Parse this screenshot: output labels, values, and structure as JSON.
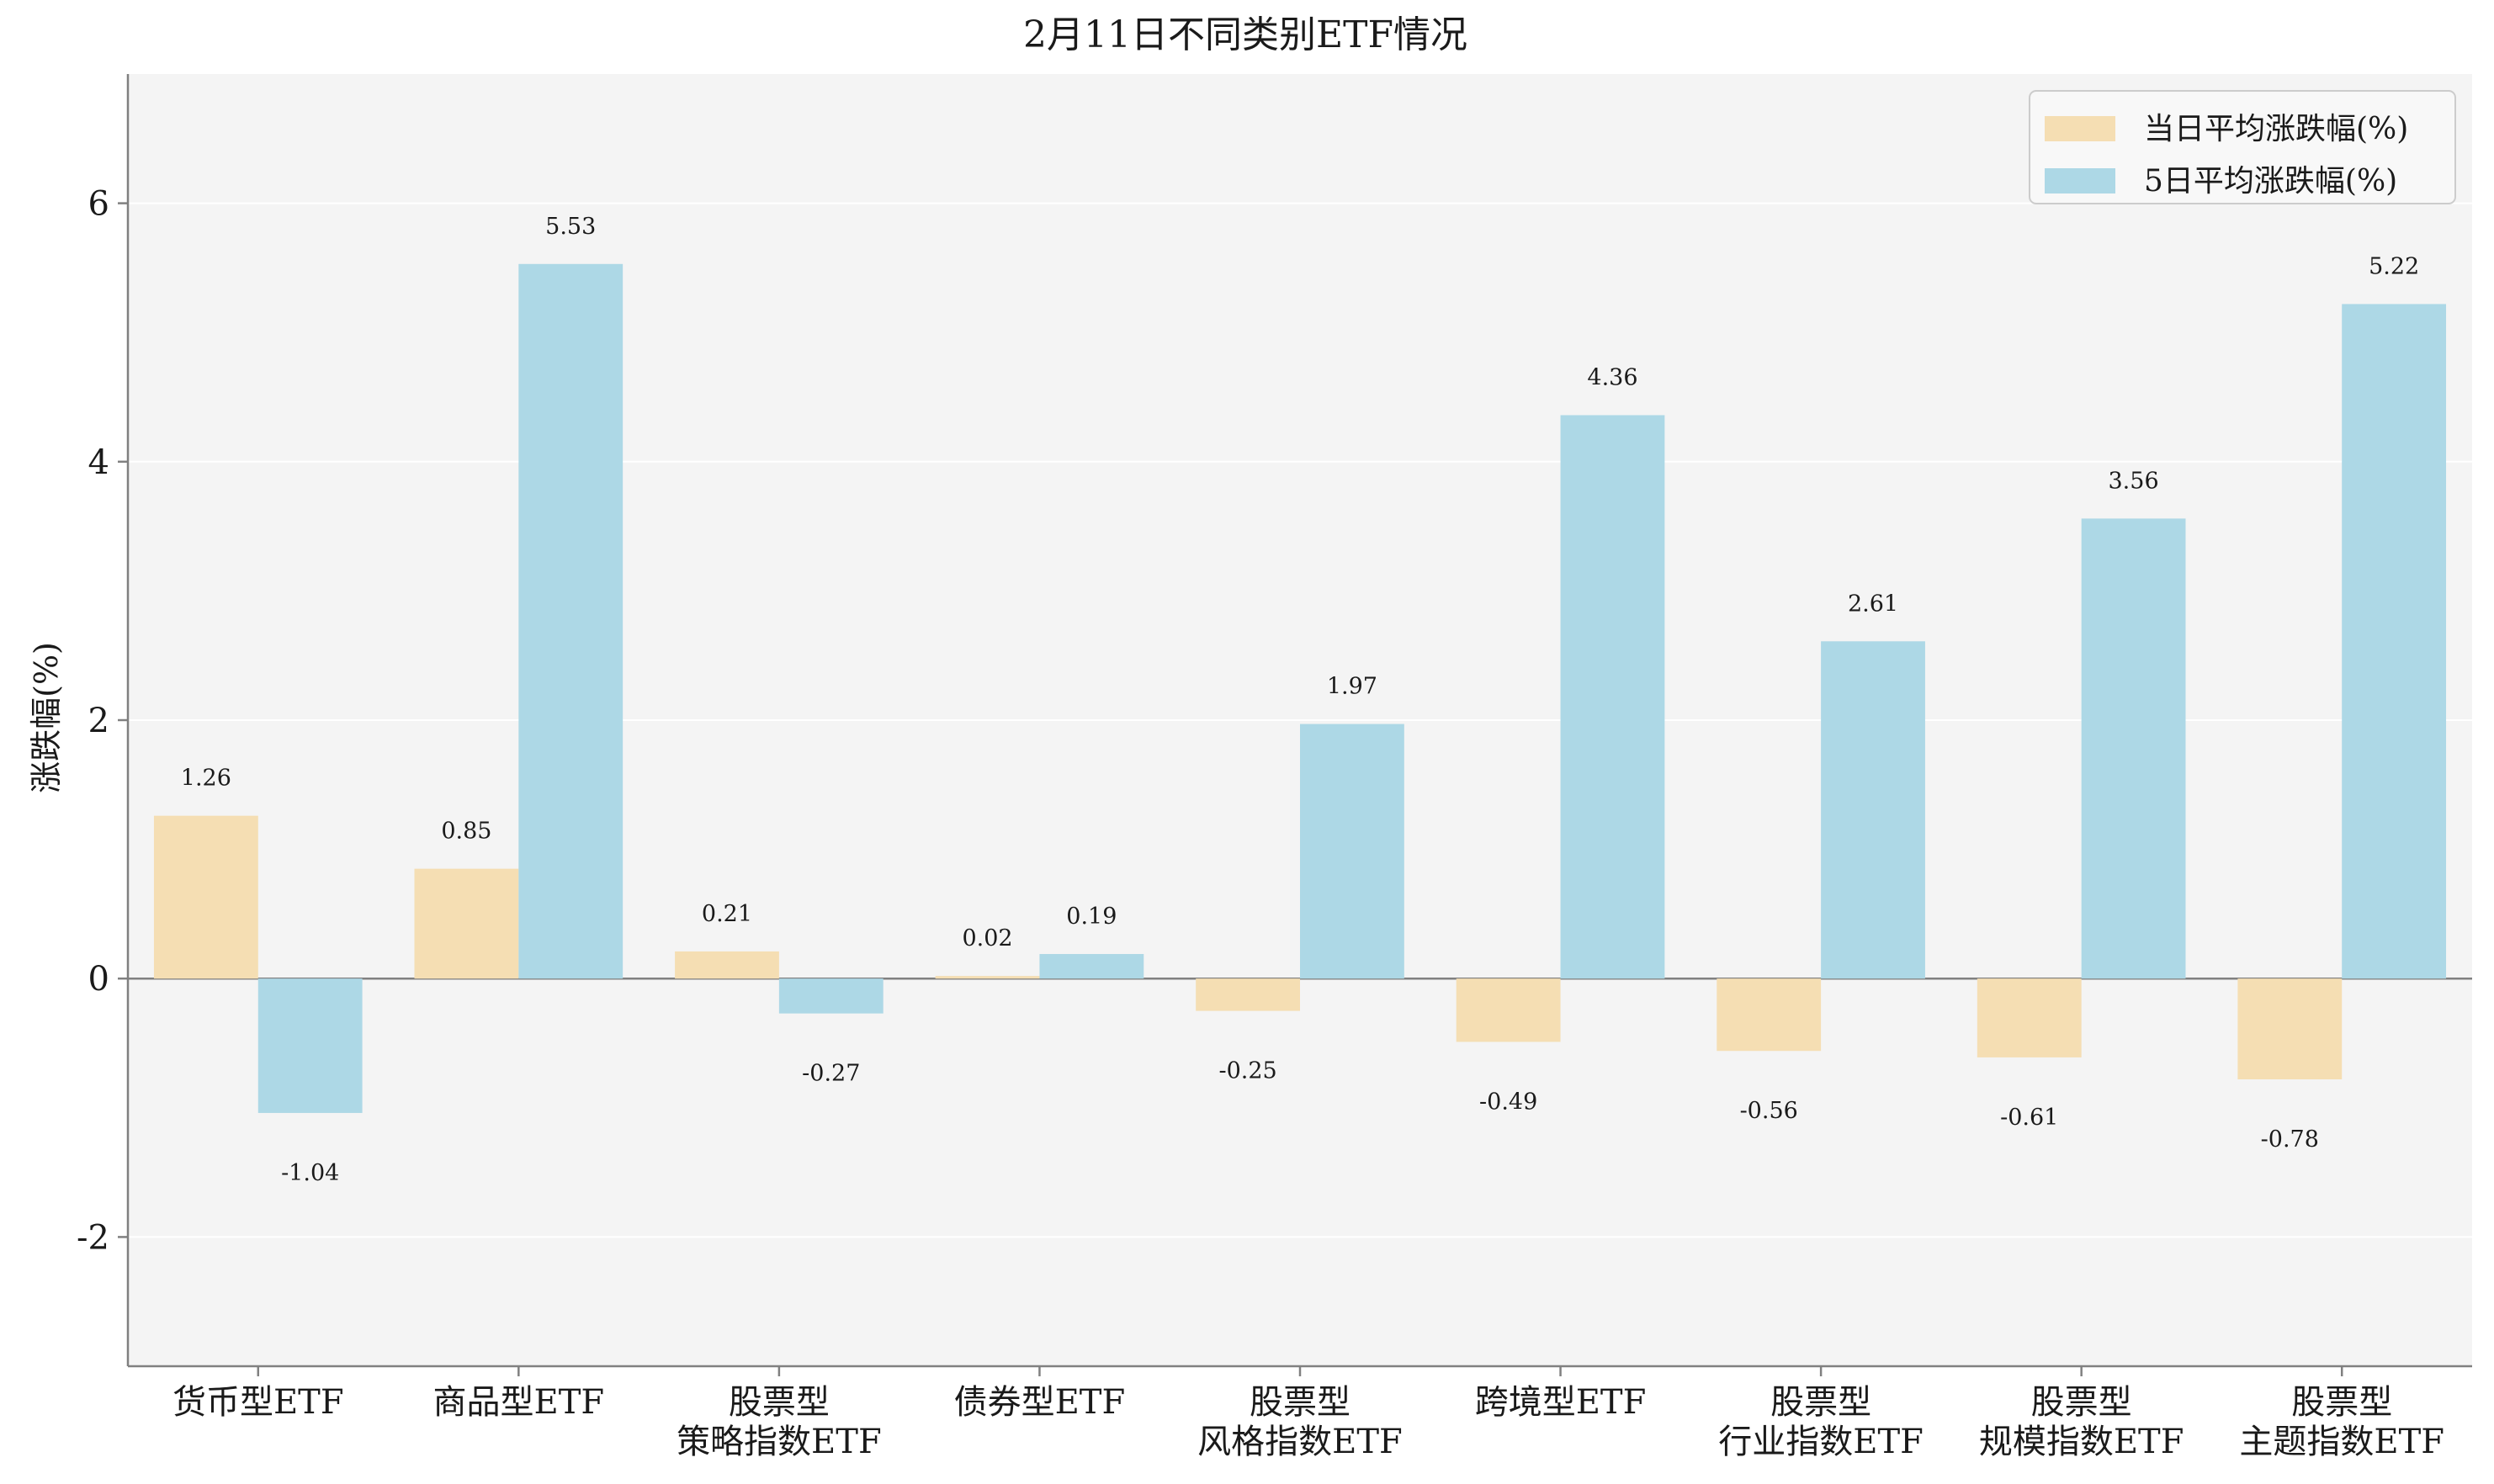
{
  "chart_data": {
    "type": "bar",
    "title": "2月11日不同类别ETF情况",
    "xlabel": "",
    "ylabel": "涨跌幅(%)",
    "ylim": [
      -3,
      7
    ],
    "yticks": [
      -2,
      0,
      2,
      4,
      6
    ],
    "ytick_labels": [
      "-2",
      "0",
      "2",
      "4",
      "6"
    ],
    "grid": true,
    "legend_position": "top-right",
    "categories": [
      [
        "货币型ETF"
      ],
      [
        "商品型ETF"
      ],
      [
        "股票型",
        "策略指数ETF"
      ],
      [
        "债券型ETF"
      ],
      [
        "股票型",
        "风格指数ETF"
      ],
      [
        "跨境型ETF"
      ],
      [
        "股票型",
        "行业指数ETF"
      ],
      [
        "股票型",
        "规模指数ETF"
      ],
      [
        "股票型",
        "主题指数ETF"
      ]
    ],
    "series": [
      {
        "name": "当日平均涨跌幅(%)",
        "color": "#F5DEB3",
        "values": [
          1.26,
          0.85,
          0.21,
          0.02,
          -0.25,
          -0.49,
          -0.56,
          -0.61,
          -0.78
        ],
        "labels": [
          "1.26",
          "0.85",
          "0.21",
          "0.02",
          "-0.25",
          "-0.49",
          "-0.56",
          "-0.61",
          "-0.78"
        ]
      },
      {
        "name": "5日平均涨跌幅(%)",
        "color": "#ADD8E6",
        "values": [
          -1.04,
          5.53,
          -0.27,
          0.19,
          1.97,
          4.36,
          2.61,
          3.56,
          5.22
        ],
        "labels": [
          "-1.04",
          "5.53",
          "-0.27",
          "0.19",
          "1.97",
          "4.36",
          "2.61",
          "3.56",
          "5.22"
        ]
      }
    ]
  }
}
